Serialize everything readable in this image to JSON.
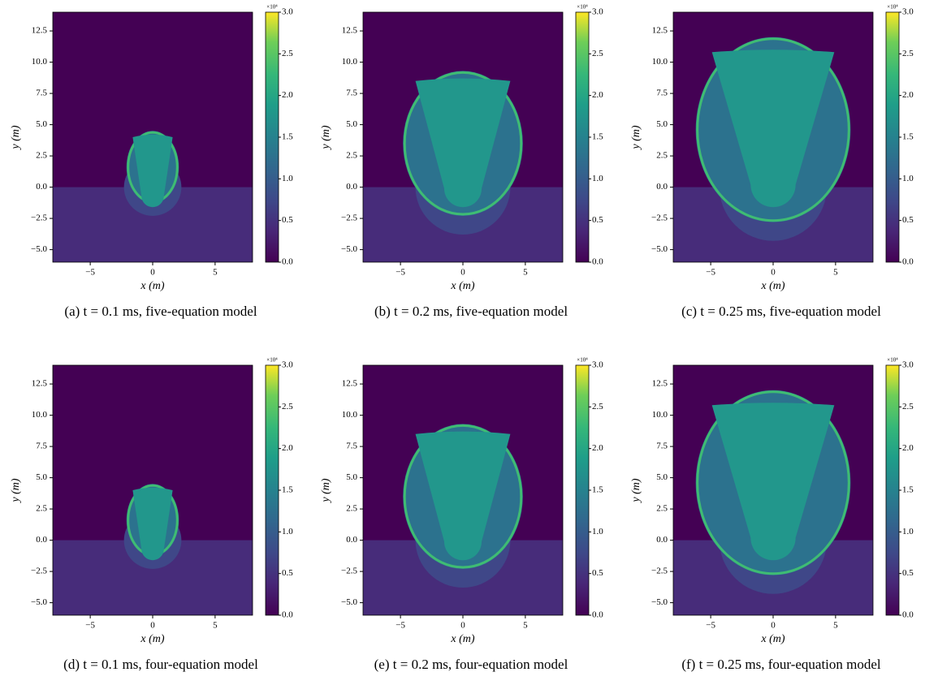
{
  "chart_data": [
    {
      "type": "heatmap",
      "caption": "(a) t = 0.1 ms, five-equation model",
      "xlabel": "x (m)",
      "ylabel": "y (m)",
      "xlim": [
        -8,
        8
      ],
      "ylim": [
        -6,
        14
      ],
      "xticks": [
        {
          "value": -5,
          "label": "−5"
        },
        0,
        5
      ],
      "yticks": [
        {
          "value": -5,
          "label": "−5.0"
        },
        {
          "value": -2.5,
          "label": "−2.5"
        },
        {
          "value": 0,
          "label": "0.0"
        },
        2.5,
        {
          "value": 5,
          "label": "5.0"
        },
        7.5,
        {
          "value": 10,
          "label": "10.0"
        },
        12.5
      ],
      "colormap": "viridis",
      "clim": [
        0,
        3
      ],
      "colorbar_label": "×10⁴",
      "cticks": [
        {
          "value": 0,
          "label": "0.0"
        },
        0.5,
        {
          "value": 1,
          "label": "1.0"
        },
        1.5,
        {
          "value": 2,
          "label": "2.0"
        },
        2.5,
        {
          "value": 3,
          "label": "3.0"
        }
      ]
    },
    {
      "type": "heatmap",
      "caption": "(b) t = 0.2 ms, five-equation model",
      "xlabel": "x (m)",
      "ylabel": "y (m)",
      "xlim": [
        -8,
        8
      ],
      "ylim": [
        -6,
        14
      ],
      "xticks": [
        {
          "value": -5,
          "label": "−5"
        },
        0,
        5
      ],
      "yticks": [
        {
          "value": -5,
          "label": "−5.0"
        },
        {
          "value": -2.5,
          "label": "−2.5"
        },
        {
          "value": 0,
          "label": "0.0"
        },
        2.5,
        {
          "value": 5,
          "label": "5.0"
        },
        7.5,
        {
          "value": 10,
          "label": "10.0"
        },
        12.5
      ],
      "colormap": "viridis",
      "clim": [
        0,
        3
      ],
      "colorbar_label": "×10⁴",
      "cticks": [
        {
          "value": 0,
          "label": "0.0"
        },
        0.5,
        {
          "value": 1,
          "label": "1.0"
        },
        1.5,
        {
          "value": 2,
          "label": "2.0"
        },
        2.5,
        {
          "value": 3,
          "label": "3.0"
        }
      ]
    },
    {
      "type": "heatmap",
      "caption": "(c) t = 0.25 ms, five-equation model",
      "xlabel": "x (m)",
      "ylabel": "y (m)",
      "xlim": [
        -8,
        8
      ],
      "ylim": [
        -6,
        14
      ],
      "xticks": [
        {
          "value": -5,
          "label": "−5"
        },
        0,
        5
      ],
      "yticks": [
        {
          "value": -5,
          "label": "−5.0"
        },
        {
          "value": -2.5,
          "label": "−2.5"
        },
        {
          "value": 0,
          "label": "0.0"
        },
        2.5,
        {
          "value": 5,
          "label": "5.0"
        },
        7.5,
        {
          "value": 10,
          "label": "10.0"
        },
        12.5
      ],
      "colormap": "viridis",
      "clim": [
        0,
        3
      ],
      "colorbar_label": "×10⁴",
      "cticks": [
        {
          "value": 0,
          "label": "0.0"
        },
        0.5,
        {
          "value": 1,
          "label": "1.0"
        },
        1.5,
        {
          "value": 2,
          "label": "2.0"
        },
        2.5,
        {
          "value": 3,
          "label": "3.0"
        }
      ]
    },
    {
      "type": "heatmap",
      "caption": "(d) t = 0.1 ms, four-equation model",
      "xlabel": "x (m)",
      "ylabel": "y (m)",
      "xlim": [
        -8,
        8
      ],
      "ylim": [
        -6,
        14
      ],
      "xticks": [
        {
          "value": -5,
          "label": "−5"
        },
        0,
        5
      ],
      "yticks": [
        {
          "value": -5,
          "label": "−5.0"
        },
        {
          "value": -2.5,
          "label": "−2.5"
        },
        {
          "value": 0,
          "label": "0.0"
        },
        2.5,
        {
          "value": 5,
          "label": "5.0"
        },
        7.5,
        {
          "value": 10,
          "label": "10.0"
        },
        12.5
      ],
      "colormap": "viridis",
      "clim": [
        0,
        3
      ],
      "colorbar_label": "×10⁴",
      "cticks": [
        {
          "value": 0,
          "label": "0.0"
        },
        0.5,
        {
          "value": 1,
          "label": "1.0"
        },
        1.5,
        {
          "value": 2,
          "label": "2.0"
        },
        2.5,
        {
          "value": 3,
          "label": "3.0"
        }
      ]
    },
    {
      "type": "heatmap",
      "caption": "(e) t = 0.2 ms, four-equation model",
      "xlabel": "x (m)",
      "ylabel": "y (m)",
      "xlim": [
        -8,
        8
      ],
      "ylim": [
        -6,
        14
      ],
      "xticks": [
        {
          "value": -5,
          "label": "−5"
        },
        0,
        5
      ],
      "yticks": [
        {
          "value": -5,
          "label": "−5.0"
        },
        {
          "value": -2.5,
          "label": "−2.5"
        },
        {
          "value": 0,
          "label": "0.0"
        },
        2.5,
        {
          "value": 5,
          "label": "5.0"
        },
        7.5,
        {
          "value": 10,
          "label": "10.0"
        },
        12.5
      ],
      "colormap": "viridis",
      "clim": [
        0,
        3
      ],
      "colorbar_label": "×10⁴",
      "cticks": [
        {
          "value": 0,
          "label": "0.0"
        },
        0.5,
        {
          "value": 1,
          "label": "1.0"
        },
        1.5,
        {
          "value": 2,
          "label": "2.0"
        },
        2.5,
        {
          "value": 3,
          "label": "3.0"
        }
      ]
    },
    {
      "type": "heatmap",
      "caption": "(f) t = 0.25 ms, four-equation model",
      "xlabel": "x (m)",
      "ylabel": "y (m)",
      "xlim": [
        -8,
        8
      ],
      "ylim": [
        -6,
        14
      ],
      "xticks": [
        {
          "value": -5,
          "label": "−5"
        },
        0,
        5
      ],
      "yticks": [
        {
          "value": -5,
          "label": "−5.0"
        },
        {
          "value": -2.5,
          "label": "−2.5"
        },
        {
          "value": 0,
          "label": "0.0"
        },
        2.5,
        {
          "value": 5,
          "label": "5.0"
        },
        7.5,
        {
          "value": 10,
          "label": "10.0"
        },
        12.5
      ],
      "colormap": "viridis",
      "clim": [
        0,
        3
      ],
      "colorbar_label": "×10⁴",
      "cticks": [
        {
          "value": 0,
          "label": "0.0"
        },
        0.5,
        {
          "value": 1,
          "label": "1.0"
        },
        1.5,
        {
          "value": 2,
          "label": "2.0"
        },
        2.5,
        {
          "value": 3,
          "label": "3.0"
        }
      ]
    }
  ]
}
